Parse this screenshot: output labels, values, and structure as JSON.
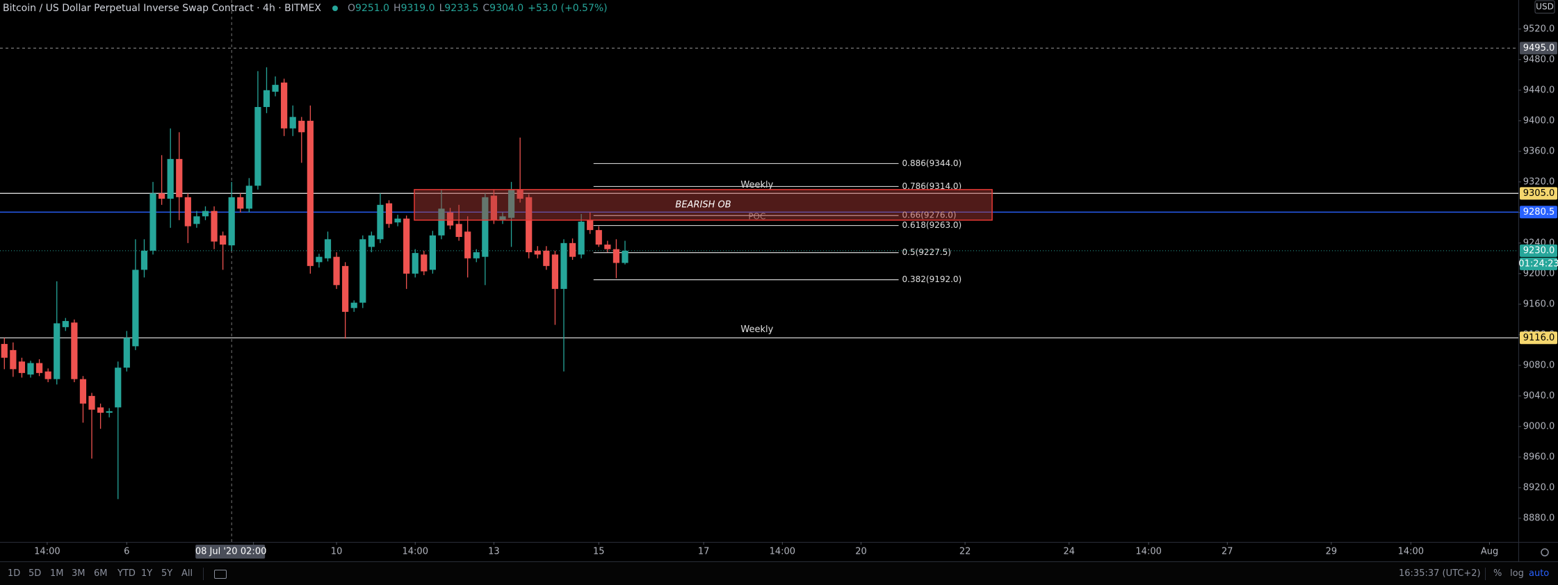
{
  "chart_data": {
    "type": "candlestick",
    "title": "Bitcoin / US Dollar Perpetual Inverse Swap Contract · 4h · BITMEX",
    "legend": [
      {
        "key": "O",
        "value": "9251.0"
      },
      {
        "key": "H",
        "value": "9319.0"
      },
      {
        "key": "L",
        "value": "9233.5"
      },
      {
        "key": "C",
        "value": "9304.0"
      }
    ],
    "change": "+53.0 (+0.57%)",
    "currency": "USD",
    "up_color": "#26a69a",
    "down_color": "#ef5350",
    "open": [
      9108,
      9100,
      9085,
      9068,
      9083,
      9072,
      9062,
      9130,
      9136,
      9062,
      9040,
      9025,
      9018,
      9025,
      9077,
      9105,
      9205,
      9230,
      9305,
      9298,
      9350,
      9300,
      9265,
      9275,
      9282,
      9250,
      9237,
      9300,
      9285,
      9315,
      9418,
      9438,
      9450,
      9390,
      9400,
      9400,
      9215,
      9220,
      9222,
      9210,
      9155,
      9162,
      9235,
      9245,
      9292,
      9267,
      9272,
      9200,
      9225,
      9205,
      9250,
      9280,
      9265,
      9255,
      9220,
      9222,
      9302,
      9270,
      9273,
      9310,
      9300,
      9230,
      9230,
      9225,
      9180,
      9240,
      9225,
      9270,
      9257,
      9238,
      9232,
      9214
    ],
    "high": [
      9116,
      9110,
      9090,
      9086,
      9088,
      9076,
      9190,
      9142,
      9140,
      9066,
      9044,
      9030,
      9024,
      9085,
      9125,
      9245,
      9245,
      9320,
      9355,
      9390,
      9385,
      9305,
      9282,
      9288,
      9288,
      9255,
      9320,
      9305,
      9325,
      9465,
      9470,
      9458,
      9455,
      9420,
      9405,
      9420,
      9226,
      9255,
      9228,
      9215,
      9165,
      9250,
      9255,
      9305,
      9296,
      9277,
      9276,
      9232,
      9230,
      9256,
      9310,
      9286,
      9290,
      9275,
      9232,
      9305,
      9310,
      9280,
      9320,
      9378,
      9304,
      9236,
      9236,
      9230,
      9245,
      9246,
      9278,
      9280,
      9262,
      9243,
      9245,
      9243
    ],
    "low": [
      9075,
      9065,
      9064,
      9064,
      9066,
      9058,
      9055,
      9125,
      9058,
      9005,
      8958,
      8997,
      9012,
      8905,
      9072,
      9100,
      9195,
      9225,
      9290,
      9260,
      9270,
      9240,
      9260,
      9270,
      9232,
      9205,
      9230,
      9280,
      9280,
      9310,
      9410,
      9432,
      9380,
      9380,
      9345,
      9200,
      9208,
      9216,
      9180,
      9115,
      9150,
      9155,
      9228,
      9240,
      9260,
      9262,
      9180,
      9195,
      9198,
      9200,
      9245,
      9258,
      9243,
      9195,
      9215,
      9185,
      9265,
      9265,
      9235,
      9293,
      9220,
      9220,
      9205,
      9133,
      9072,
      9218,
      9220,
      9252,
      9235,
      9228,
      9194,
      9212
    ],
    "close": [
      9090,
      9075,
      9070,
      9083,
      9070,
      9062,
      9135,
      9138,
      9062,
      9030,
      9022,
      9018,
      9020,
      9077,
      9116,
      9205,
      9230,
      9305,
      9298,
      9350,
      9300,
      9262,
      9275,
      9282,
      9242,
      9238,
      9300,
      9285,
      9315,
      9418,
      9440,
      9447,
      9390,
      9405,
      9385,
      9210,
      9222,
      9245,
      9185,
      9150,
      9162,
      9245,
      9250,
      9290,
      9265,
      9272,
      9200,
      9227,
      9203,
      9250,
      9285,
      9263,
      9248,
      9220,
      9228,
      9300,
      9270,
      9275,
      9310,
      9298,
      9228,
      9225,
      9210,
      9180,
      9240,
      9222,
      9268,
      9257,
      9238,
      9232,
      9214,
      9230
    ],
    "xlim": [
      -0.5,
      173.2
    ],
    "ylim": [
      8849,
      9558
    ],
    "xticks": [
      {
        "value": 4.9,
        "label": "14:00"
      },
      {
        "value": 14,
        "label": "6"
      },
      {
        "value": 28.5,
        "label": "02:00"
      },
      {
        "value": 38,
        "label": "10"
      },
      {
        "value": 47,
        "label": "14:00"
      },
      {
        "value": 56,
        "label": "13"
      },
      {
        "value": 68,
        "label": "15"
      },
      {
        "value": 80,
        "label": "17"
      },
      {
        "value": 89,
        "label": "14:00"
      },
      {
        "value": 98,
        "label": "20"
      },
      {
        "value": 109.9,
        "label": "22"
      },
      {
        "value": 121.8,
        "label": "24"
      },
      {
        "value": 130.9,
        "label": "14:00"
      },
      {
        "value": 139.9,
        "label": "27"
      },
      {
        "value": 151.8,
        "label": "29"
      },
      {
        "value": 160.9,
        "label": "14:00"
      },
      {
        "value": 169.9,
        "label": "Aug"
      }
    ],
    "yticks": [
      {
        "value": 8880,
        "label": "8880.0"
      },
      {
        "value": 8920,
        "label": "8920.0"
      },
      {
        "value": 8960,
        "label": "8960.0"
      },
      {
        "value": 9000,
        "label": "9000.0"
      },
      {
        "value": 9040,
        "label": "9040.0"
      },
      {
        "value": 9080,
        "label": "9080.0"
      },
      {
        "value": 9120,
        "label": "9120.0"
      },
      {
        "value": 9160,
        "label": "9160.0"
      },
      {
        "value": 9200,
        "label": "9200.0"
      },
      {
        "value": 9240,
        "label": "9240.0"
      },
      {
        "value": 9280,
        "label": "9280.0"
      },
      {
        "value": 9320,
        "label": "9320.0"
      },
      {
        "value": 9360,
        "label": "9360.0"
      },
      {
        "value": 9400,
        "label": "9400.0"
      },
      {
        "value": 9440,
        "label": "9440.0"
      },
      {
        "value": 9480,
        "label": "9480.0"
      },
      {
        "value": 9520,
        "label": "9520.0"
      }
    ],
    "grid": false,
    "levels": [
      {
        "value": 9305,
        "label": "9305.0",
        "color": "#f5d76e",
        "text_color": "#000000",
        "line_color": "#d8d8d8",
        "note": "Weekly"
      },
      {
        "value": 9280.5,
        "label": "9280.5",
        "color": "#2962ff",
        "text_color": "#ffffff",
        "line_color": "#2962ff"
      },
      {
        "value": 9116,
        "label": "9116.0",
        "color": "#f5d76e",
        "text_color": "#000000",
        "line_color": "#d8d8d8",
        "note": "Weekly"
      }
    ],
    "fib": [
      {
        "value": 9344,
        "label": "0.886(9344.0)"
      },
      {
        "value": 9314,
        "label": "0.786(9314.0)"
      },
      {
        "value": 9276,
        "label": "0.66(9276.0)"
      },
      {
        "value": 9263,
        "label": "0.618(9263.0)"
      },
      {
        "value": 9227.5,
        "label": "0.5(9227.5)"
      },
      {
        "value": 9192,
        "label": "0.382(9192.0)"
      }
    ],
    "zone": {
      "label": "BEARISH OB",
      "top": 9310,
      "bottom": 9270,
      "note": "POC"
    },
    "crosshair": {
      "label": "08 Jul '20",
      "price": {
        "value": 9495,
        "label": "9495.0"
      }
    },
    "current": {
      "value": 9230,
      "label": "9230.0",
      "countdown": "01:24:23"
    }
  },
  "toolbar": {
    "ranges": [
      "1D",
      "5D",
      "1M",
      "3M",
      "6M",
      "YTD",
      "1Y",
      "5Y",
      "All"
    ],
    "clock": "16:35:37 (UTC+2)",
    "options": [
      "%",
      "log",
      "auto"
    ]
  }
}
